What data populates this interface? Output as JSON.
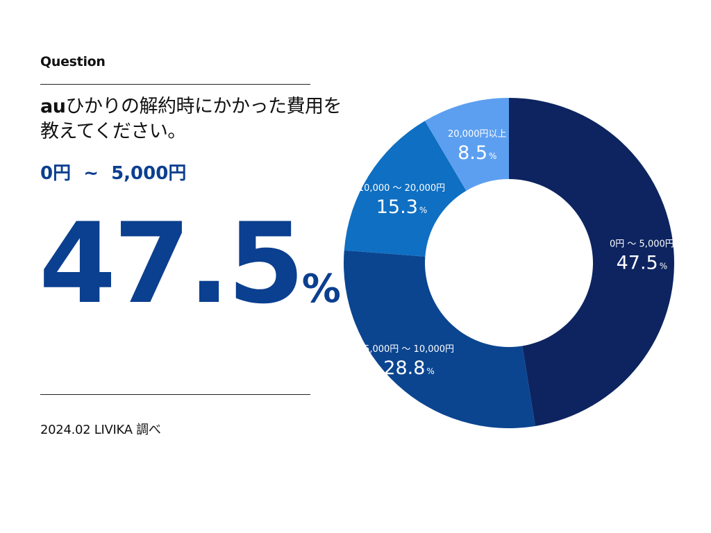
{
  "header": {
    "label": "Question",
    "question_line1_brand": "au",
    "question_line1_rest": "ひかりの解約時にかかった費用を",
    "question_line2": "教えてください。"
  },
  "highlight": {
    "range_label": "0円  ~  5,000円",
    "value": "47.5",
    "unit": "%"
  },
  "footer": {
    "source": "2024.02 LIVIKA 調べ"
  },
  "chart_data": {
    "type": "pie",
    "donut": true,
    "start_angle": "top, clockwise",
    "slices": [
      {
        "label": "0円 ～ 5,000円",
        "value": 47.5,
        "color": "#0d2460"
      },
      {
        "label": "5,000円 ～ 10,000円",
        "value": 28.8,
        "color": "#0b4590"
      },
      {
        "label": "10,000 ～ 20,000円",
        "value": 15.3,
        "color": "#0f6fc2"
      },
      {
        "label": "20,000円以上",
        "value": 8.5,
        "color": "#5c9ff0"
      }
    ],
    "unit": "%"
  }
}
